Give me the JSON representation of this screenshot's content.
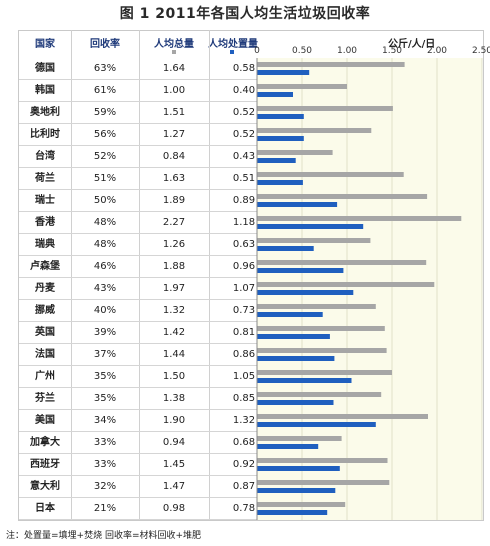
{
  "title": "图 1 2011年各国人均生活垃圾回收率",
  "columns": {
    "country": "国家",
    "rate": "回收率",
    "total": "人均总量",
    "processed": "人均处置量"
  },
  "unit": "公斤/人/日",
  "note": "注：处置量=填埋+焚烧    回收率=材料回收+堆肥",
  "colors": {
    "total": "#a6a6a6",
    "processed": "#1f5fbf",
    "header": "#1f3a7a",
    "plot_bg": "#fbfbea"
  },
  "chart_data": {
    "type": "bar",
    "orientation": "horizontal",
    "xlim": [
      0,
      2.5
    ],
    "xticks": [
      "0",
      "0.50",
      "1.00",
      "1.50",
      "2.00",
      "2.50"
    ],
    "xtick_values": [
      0,
      0.5,
      1.0,
      1.5,
      2.0,
      2.5
    ],
    "categories": [
      "德国",
      "韩国",
      "奥地利",
      "比利时",
      "台湾",
      "荷兰",
      "瑞士",
      "香港",
      "瑞典",
      "卢森堡",
      "丹麦",
      "挪威",
      "英国",
      "法国",
      "广州",
      "芬兰",
      "美国",
      "加拿大",
      "西班牙",
      "意大利",
      "日本"
    ],
    "recovery_rate": [
      "63%",
      "61%",
      "59%",
      "56%",
      "52%",
      "51%",
      "50%",
      "48%",
      "48%",
      "46%",
      "43%",
      "40%",
      "39%",
      "37%",
      "35%",
      "35%",
      "34%",
      "33%",
      "33%",
      "32%",
      "21%"
    ],
    "series": [
      {
        "name": "人均总量",
        "values": [
          1.64,
          1.0,
          1.51,
          1.27,
          0.84,
          1.63,
          1.89,
          2.27,
          1.26,
          1.88,
          1.97,
          1.32,
          1.42,
          1.44,
          1.5,
          1.38,
          1.9,
          0.94,
          1.45,
          1.47,
          0.98
        ]
      },
      {
        "name": "人均处置量",
        "values": [
          0.58,
          0.4,
          0.52,
          0.52,
          0.43,
          0.51,
          0.89,
          1.18,
          0.63,
          0.96,
          1.07,
          0.73,
          0.81,
          0.86,
          1.05,
          0.85,
          1.32,
          0.68,
          0.92,
          0.87,
          0.78
        ]
      }
    ]
  }
}
